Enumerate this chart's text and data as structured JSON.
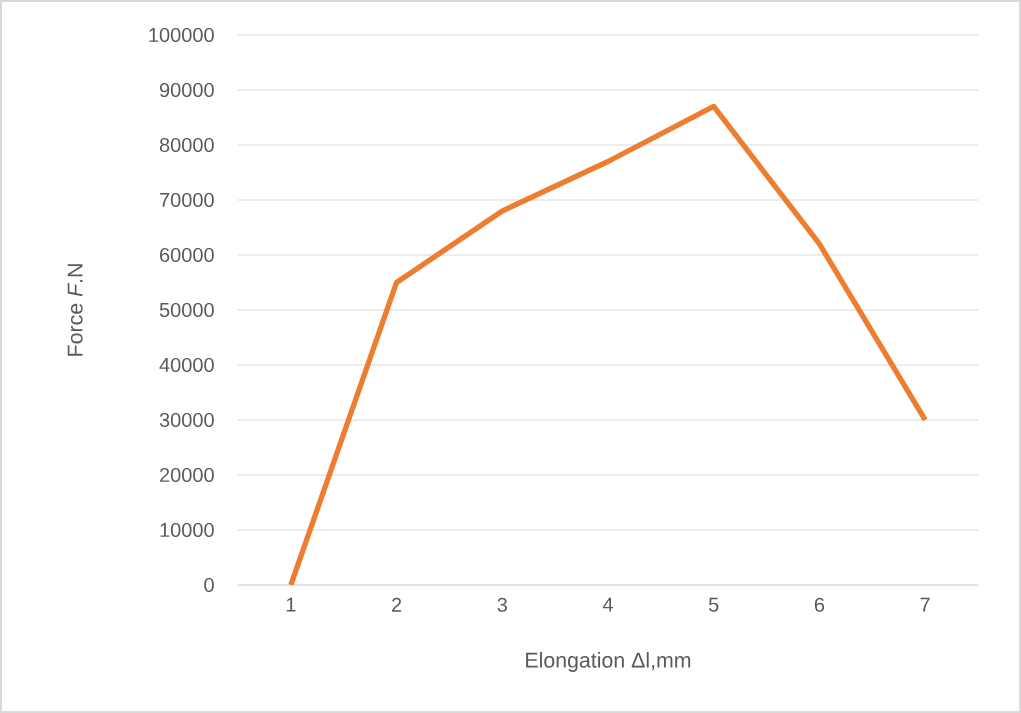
{
  "chart_data": {
    "type": "line",
    "xlabel": "Elongation Δl,mm",
    "ylabel": "Force *F*.N",
    "categories": [
      "1",
      "2",
      "3",
      "4",
      "5",
      "6",
      "7"
    ],
    "series": [
      {
        "color": "#ed7d31",
        "values": [
          0,
          55000,
          68000,
          77000,
          87000,
          62000,
          30000
        ]
      }
    ],
    "ylim": [
      0,
      100000
    ],
    "yticks": [
      0,
      10000,
      20000,
      30000,
      40000,
      50000,
      60000,
      70000,
      80000,
      90000,
      100000
    ],
    "grid": "y",
    "marker": "none",
    "line_style": "solid"
  }
}
